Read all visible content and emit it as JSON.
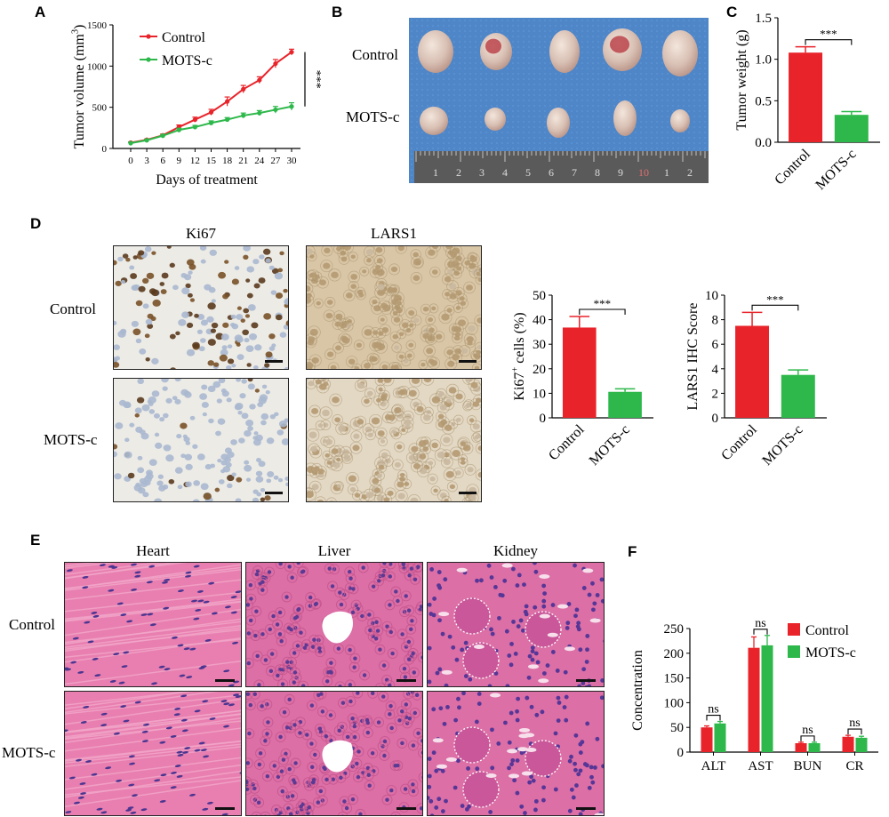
{
  "panels": {
    "A": "A",
    "B": "B",
    "C": "C",
    "D": "D",
    "E": "E",
    "F": "F"
  },
  "groups": {
    "control": "Control",
    "mots": "MOTS-c"
  },
  "colors": {
    "control": "#e8232a",
    "mots": "#2eb84b",
    "photo_bg": "#4e83c4"
  },
  "panel_D": {
    "col_ki67": "Ki67",
    "col_lars1": "LARS1",
    "row_control": "Control",
    "row_mots": "MOTS-c"
  },
  "panel_E": {
    "col_heart": "Heart",
    "col_liver": "Liver",
    "col_kidney": "Kidney",
    "row_control": "Control",
    "row_mots": "MOTS-c"
  },
  "panel_B": {
    "row_control": "Control",
    "row_mots": "MOTS-c",
    "ruler_numbers": [
      "1",
      "2",
      "3",
      "4",
      "5",
      "6",
      "7",
      "8",
      "9",
      "10",
      "1",
      "2"
    ]
  },
  "chart_data": [
    {
      "id": "A",
      "type": "line",
      "xlabel": "Days of treatment",
      "ylabel_main": "Tumor volume (mm",
      "ylabel_sup": "3",
      "ylabel_close": ")",
      "x": [
        0,
        3,
        6,
        9,
        12,
        15,
        18,
        21,
        24,
        27,
        30
      ],
      "xlim": [
        0,
        30
      ],
      "ylim": [
        0,
        1500
      ],
      "yticks": [
        0,
        500,
        1000,
        1500
      ],
      "significance": "***",
      "legend_position": "top-left",
      "series": [
        {
          "name": "Control",
          "values": [
            70,
            105,
            160,
            260,
            350,
            440,
            570,
            720,
            830,
            1030,
            1170
          ],
          "errors": [
            8,
            10,
            15,
            25,
            30,
            35,
            55,
            45,
            40,
            50,
            35
          ]
        },
        {
          "name": "MOTS-c",
          "values": [
            65,
            100,
            155,
            225,
            260,
            310,
            350,
            400,
            430,
            470,
            510
          ],
          "errors": [
            8,
            10,
            12,
            20,
            20,
            25,
            25,
            30,
            30,
            40,
            45
          ]
        }
      ]
    },
    {
      "id": "C",
      "type": "bar",
      "ylabel": "Tumor weight (g)",
      "categories": [
        "Control",
        "MOTS-c"
      ],
      "values": [
        1.08,
        0.33
      ],
      "errors": [
        0.07,
        0.04
      ],
      "ylim": [
        0,
        1.5
      ],
      "yticks": [
        "0.0",
        "0.5",
        "1.0",
        "1.5"
      ],
      "significance": "***"
    },
    {
      "id": "D1",
      "type": "bar",
      "ylabel_main": "Ki67",
      "ylabel_sup": "+",
      "ylabel_rest": " cells (%)",
      "categories": [
        "Control",
        "MOTS-c"
      ],
      "values": [
        36.8,
        10.6
      ],
      "errors": [
        4.5,
        1.2
      ],
      "ylim": [
        0,
        50
      ],
      "yticks": [
        "0",
        "10",
        "20",
        "30",
        "40",
        "50"
      ],
      "significance": "***"
    },
    {
      "id": "D2",
      "type": "bar",
      "ylabel": "LARS1 IHC Score",
      "categories": [
        "Control",
        "MOTS-c"
      ],
      "values": [
        7.5,
        3.5
      ],
      "errors": [
        1.1,
        0.4
      ],
      "ylim": [
        0,
        10
      ],
      "yticks": [
        "0",
        "2",
        "4",
        "6",
        "8",
        "10"
      ],
      "significance": "***"
    },
    {
      "id": "F",
      "type": "bar",
      "ylabel": "Concentration",
      "categories": [
        "ALT",
        "AST",
        "BUN",
        "CR"
      ],
      "ylim": [
        0,
        250
      ],
      "yticks": [
        "0",
        "50",
        "100",
        "150",
        "200",
        "250"
      ],
      "significance": [
        "ns",
        "ns",
        "ns",
        "ns"
      ],
      "legend_position": "top-right",
      "series": [
        {
          "name": "Control",
          "values": [
            50,
            211,
            18,
            31
          ],
          "errors": [
            3,
            22,
            2,
            3
          ]
        },
        {
          "name": "MOTS-c",
          "values": [
            58,
            216,
            18,
            29
          ],
          "errors": [
            4,
            20,
            2,
            3
          ]
        }
      ]
    }
  ]
}
